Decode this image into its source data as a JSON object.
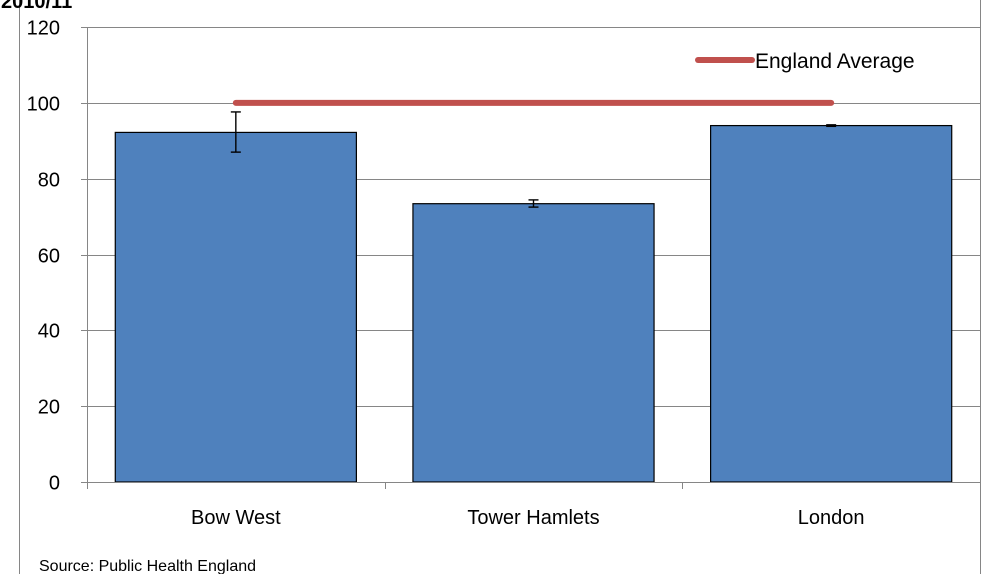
{
  "chart_data": {
    "type": "bar",
    "title": "2010/11",
    "categories": [
      "Bow West",
      "Tower Hamlets",
      "London"
    ],
    "series": [
      {
        "values": [
          92.2,
          73.4,
          94.0
        ],
        "error_low": [
          87.0,
          72.5,
          93.8
        ],
        "error_high": [
          97.6,
          74.4,
          94.2
        ],
        "color": "#4f81bd"
      }
    ],
    "reference_line": {
      "name": "England Average",
      "value": 100,
      "color": "#c0504d"
    },
    "ylim": [
      0,
      120
    ],
    "yticks": [
      "0",
      "20",
      "40",
      "60",
      "80",
      "100",
      "120"
    ],
    "xlabel": "",
    "ylabel": "",
    "grid": true,
    "legend_position": "top-right"
  },
  "source": "Source: Public Health England"
}
